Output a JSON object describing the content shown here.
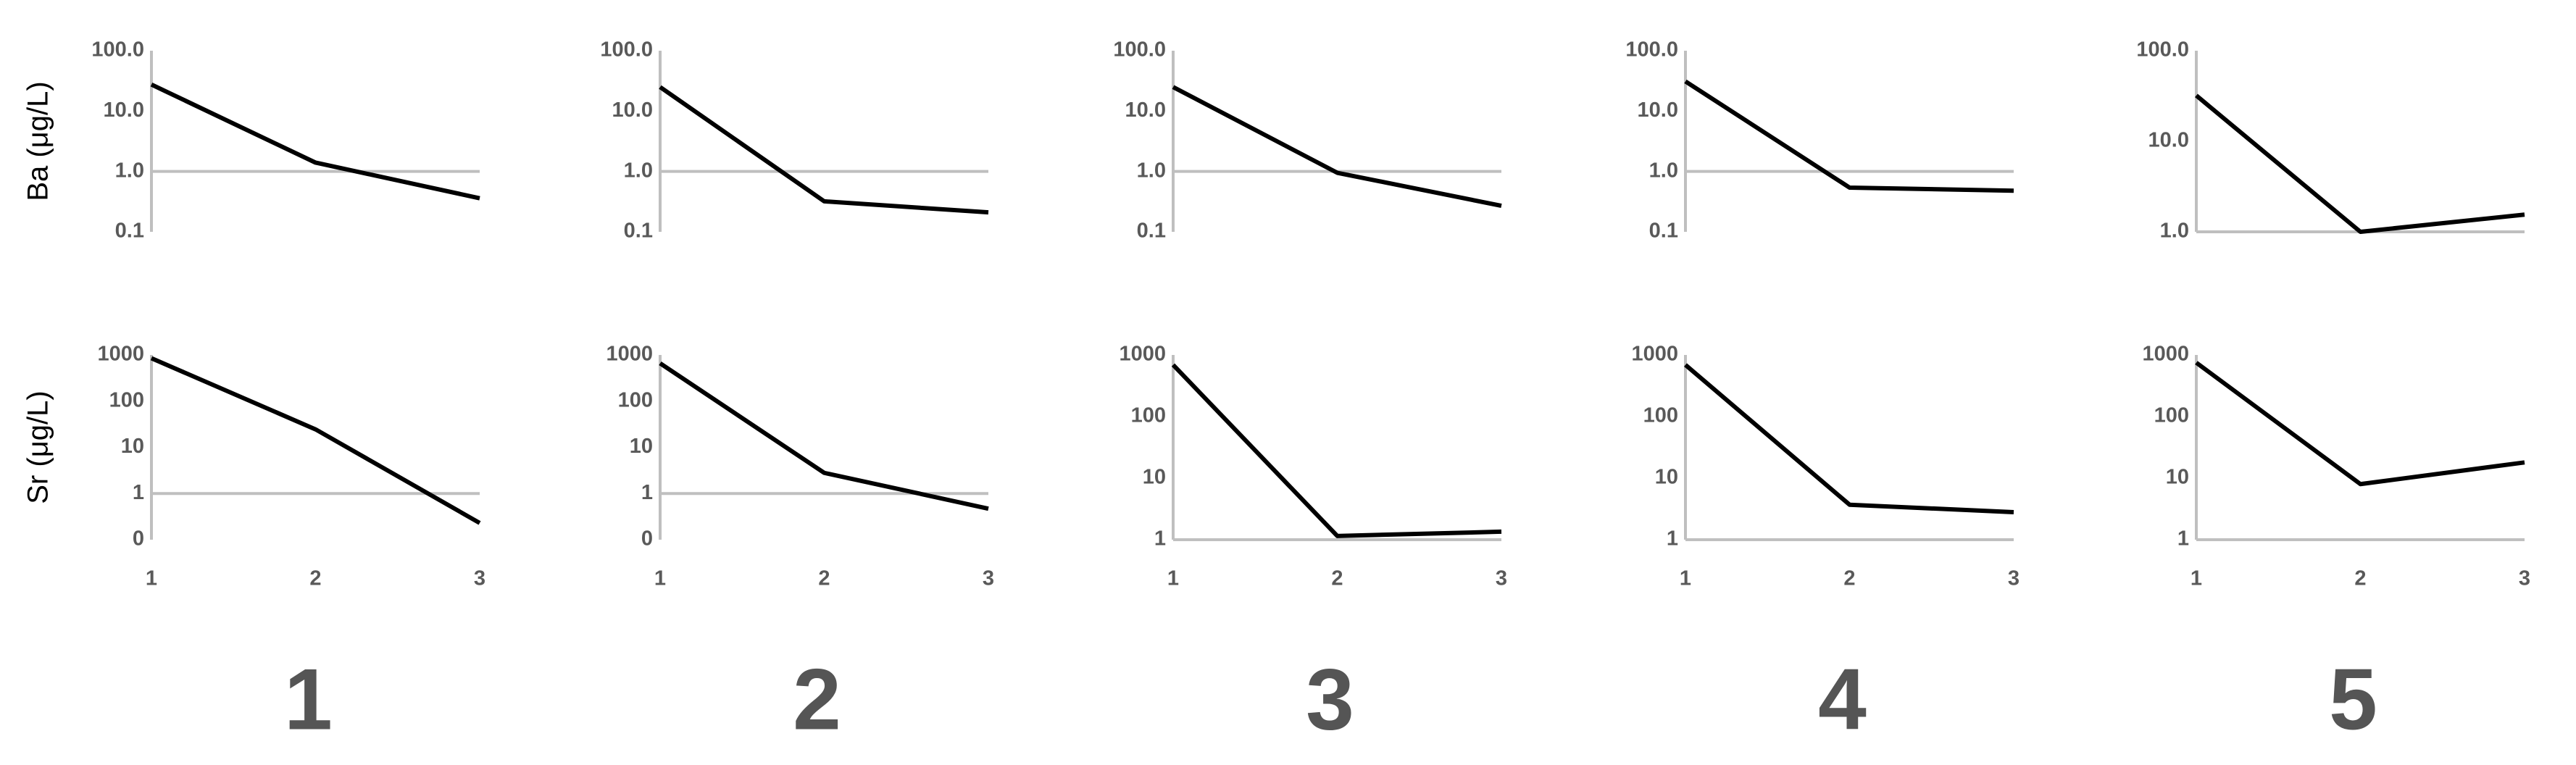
{
  "column_labels": [
    "1",
    "2",
    "3",
    "4",
    "5"
  ],
  "chart_data": [
    {
      "type": "line",
      "ylabel": "Ba (μg/L)",
      "x": [
        1,
        2,
        3
      ],
      "xlim": [
        1,
        3
      ],
      "log_y": true,
      "x_axis_crosses": 1,
      "ylim": [
        0.1,
        100
      ],
      "yticks": [
        {
          "value": 100,
          "label": "100.0"
        },
        {
          "value": 10,
          "label": "10.0"
        },
        {
          "value": 1,
          "label": "1.0"
        },
        0.1
      ],
      "series": [
        {
          "color": "#000000",
          "values": [
            27.5,
            1.4,
            0.36
          ]
        }
      ]
    },
    {
      "type": "line",
      "x": [
        1,
        2,
        3
      ],
      "xlim": [
        1,
        3
      ],
      "log_y": true,
      "x_axis_crosses": 1,
      "ylim": [
        0.1,
        100
      ],
      "yticks": [
        {
          "value": 100,
          "label": "100.0"
        },
        {
          "value": 10,
          "label": "10.0"
        },
        {
          "value": 1,
          "label": "1.0"
        },
        0.1
      ],
      "series": [
        {
          "color": "#000000",
          "values": [
            25,
            0.32,
            0.21
          ]
        }
      ]
    },
    {
      "type": "line",
      "x": [
        1,
        2,
        3
      ],
      "xlim": [
        1,
        3
      ],
      "log_y": true,
      "x_axis_crosses": 1,
      "ylim": [
        0.1,
        100
      ],
      "yticks": [
        {
          "value": 100,
          "label": "100.0"
        },
        {
          "value": 10,
          "label": "10.0"
        },
        {
          "value": 1,
          "label": "1.0"
        },
        0.1
      ],
      "series": [
        {
          "color": "#000000",
          "values": [
            25,
            0.95,
            0.27
          ]
        }
      ]
    },
    {
      "type": "line",
      "x": [
        1,
        2,
        3
      ],
      "xlim": [
        1,
        3
      ],
      "log_y": true,
      "x_axis_crosses": 1,
      "ylim": [
        0.1,
        100
      ],
      "yticks": [
        {
          "value": 100,
          "label": "100.0"
        },
        {
          "value": 10,
          "label": "10.0"
        },
        {
          "value": 1,
          "label": "1.0"
        },
        0.1
      ],
      "series": [
        {
          "color": "#000000",
          "values": [
            31,
            0.54,
            0.48
          ]
        }
      ]
    },
    {
      "type": "line",
      "x": [
        1,
        2,
        3
      ],
      "xlim": [
        1,
        3
      ],
      "log_y": true,
      "x_axis_crosses": 1,
      "ylim": [
        1,
        100
      ],
      "yticks": [
        {
          "value": 100,
          "label": "100.0"
        },
        {
          "value": 10,
          "label": "10.0"
        },
        {
          "value": 1,
          "label": "1.0"
        }
      ],
      "series": [
        {
          "color": "#000000",
          "values": [
            32,
            1,
            1.55
          ]
        }
      ]
    },
    {
      "type": "line",
      "ylabel": "Sr (μg/L)",
      "x": [
        1,
        2,
        3
      ],
      "xlim": [
        1,
        3
      ],
      "xticks": [
        1,
        2,
        3
      ],
      "log_y": true,
      "x_axis_crosses": 1,
      "ylim": [
        0.1,
        1000
      ],
      "yticks": [
        1000,
        100,
        10,
        1,
        {
          "value": 0.1,
          "label": "0"
        }
      ],
      "series": [
        {
          "color": "#000000",
          "values": [
            850,
            24.5,
            0.23
          ]
        }
      ]
    },
    {
      "type": "line",
      "x": [
        1,
        2,
        3
      ],
      "xlim": [
        1,
        3
      ],
      "xticks": [
        1,
        2,
        3
      ],
      "log_y": true,
      "x_axis_crosses": 1,
      "ylim": [
        0.1,
        1000
      ],
      "yticks": [
        1000,
        100,
        10,
        1,
        {
          "value": 0.1,
          "label": "0"
        }
      ],
      "series": [
        {
          "color": "#000000",
          "values": [
            660,
            2.8,
            0.47
          ]
        }
      ]
    },
    {
      "type": "line",
      "x": [
        1,
        2,
        3
      ],
      "xlim": [
        1,
        3
      ],
      "xticks": [
        1,
        2,
        3
      ],
      "log_y": true,
      "x_axis_crosses": 1,
      "ylim": [
        1,
        1000
      ],
      "yticks": [
        1000,
        100,
        10,
        1
      ],
      "series": [
        {
          "color": "#000000",
          "values": [
            690,
            1.15,
            1.35
          ]
        }
      ]
    },
    {
      "type": "line",
      "x": [
        1,
        2,
        3
      ],
      "xlim": [
        1,
        3
      ],
      "xticks": [
        1,
        2,
        3
      ],
      "log_y": true,
      "x_axis_crosses": 1,
      "ylim": [
        1,
        1000
      ],
      "yticks": [
        1000,
        100,
        10,
        1
      ],
      "series": [
        {
          "color": "#000000",
          "values": [
            690,
            3.7,
            2.8
          ]
        }
      ]
    },
    {
      "type": "line",
      "x": [
        1,
        2,
        3
      ],
      "xlim": [
        1,
        3
      ],
      "xticks": [
        1,
        2,
        3
      ],
      "log_y": true,
      "x_axis_crosses": 1,
      "ylim": [
        1,
        1000
      ],
      "yticks": [
        1000,
        100,
        10,
        1
      ],
      "series": [
        {
          "color": "#000000",
          "values": [
            750,
            8,
            18
          ]
        }
      ]
    }
  ]
}
